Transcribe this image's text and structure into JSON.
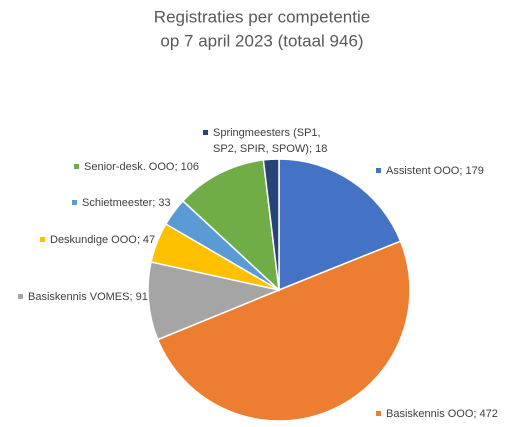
{
  "chart_data": {
    "type": "pie",
    "title": [
      "Registraties per competentie",
      "op 7 april 2023 (totaal 946)"
    ],
    "categories": [
      "Assistent OOO",
      "Basiskennis OOO",
      "Basiskennis VOMES",
      "Deskundige OOO",
      "Schietmeester",
      "Senior-desk. OOO",
      "Springmeesters (SP1, SP2, SPIR, SPOW)"
    ],
    "values": [
      179,
      472,
      91,
      47,
      33,
      106,
      18
    ],
    "value_labels": [
      "Assistent OOO; 179",
      "Basiskennis OOO; 472",
      "Basiskennis VOMES; 91",
      "Deskundige OOO; 47",
      "Schietmeester; 33",
      "Senior-desk. OOO; 106",
      [
        "Springmeesters (SP1,",
        "SP2, SPIR, SPOW); 18"
      ]
    ],
    "colors": [
      "#4472c4",
      "#ed7d31",
      "#a5a5a5",
      "#ffc000",
      "#5b9bd5",
      "#70ad47",
      "#264478"
    ]
  }
}
